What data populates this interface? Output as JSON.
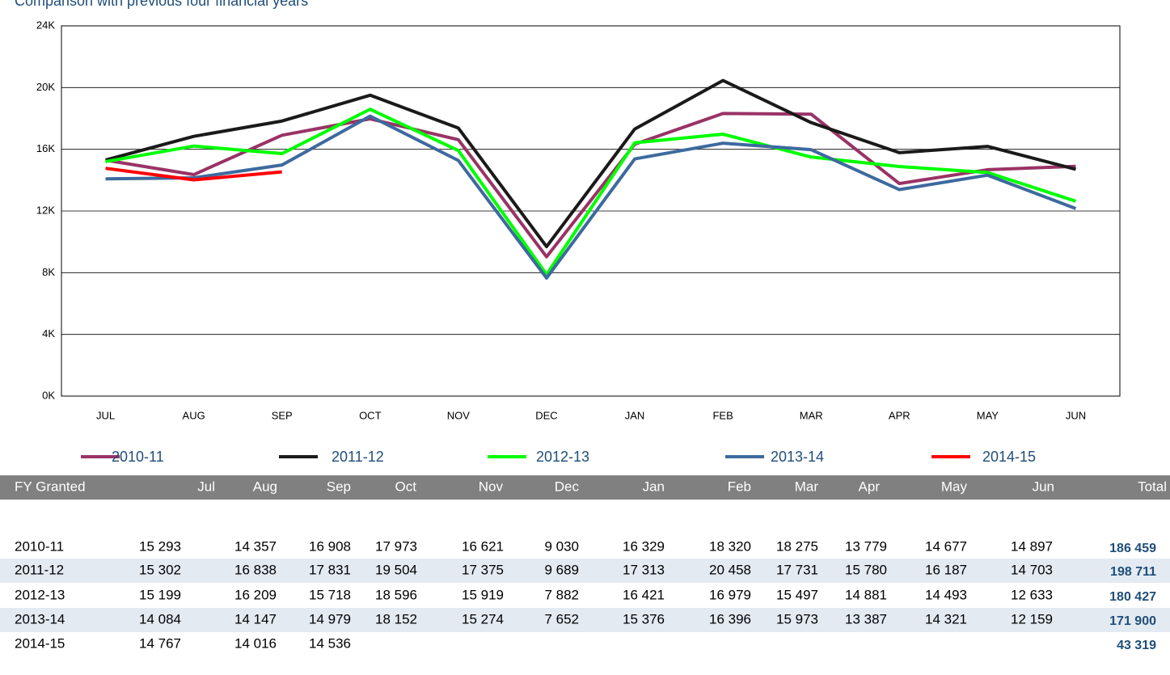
{
  "chart_data": {
    "type": "line",
    "title": "Comparison with previous four financial years",
    "categories": [
      "JUL",
      "AUG",
      "SEP",
      "OCT",
      "NOV",
      "DEC",
      "JAN",
      "FEB",
      "MAR",
      "APR",
      "MAY",
      "JUN"
    ],
    "series": [
      {
        "name": "2010-11",
        "color": "#993366",
        "values": [
          15293,
          14357,
          16908,
          17973,
          16621,
          9030,
          16329,
          18320,
          18275,
          13779,
          14677,
          14897
        ]
      },
      {
        "name": "2011-12",
        "color": "#1a1a1a",
        "values": [
          15302,
          16838,
          17831,
          19504,
          17375,
          9689,
          17313,
          20458,
          17731,
          15780,
          16187,
          14703
        ]
      },
      {
        "name": "2012-13",
        "color": "#00ff00",
        "values": [
          15199,
          16209,
          15718,
          18596,
          15919,
          7882,
          16421,
          16979,
          15497,
          14881,
          14493,
          12633
        ]
      },
      {
        "name": "2013-14",
        "color": "#3d6a9e",
        "values": [
          14084,
          14147,
          14979,
          18152,
          15274,
          7652,
          15376,
          16396,
          15973,
          13387,
          14321,
          12159
        ]
      },
      {
        "name": "2014-15",
        "color": "#ff0000",
        "values": [
          14767,
          14016,
          14536,
          null,
          null,
          null,
          null,
          null,
          null,
          null,
          null,
          null
        ]
      }
    ],
    "ylim": [
      0,
      24000
    ],
    "yticks": [
      {
        "value": 0,
        "label": "0K"
      },
      {
        "value": 4000,
        "label": "4K"
      },
      {
        "value": 8000,
        "label": "8K"
      },
      {
        "value": 12000,
        "label": "12K"
      },
      {
        "value": 16000,
        "label": "16K"
      },
      {
        "value": 20000,
        "label": "20K"
      },
      {
        "value": 24000,
        "label": "24K"
      }
    ],
    "grid": true,
    "legend": "bottom"
  },
  "table": {
    "header": [
      "FY Granted",
      "Jul",
      "Aug",
      "Sep",
      "Oct",
      "Nov",
      "Dec",
      "Jan",
      "Feb",
      "Mar",
      "Apr",
      "May",
      "Jun",
      "Total"
    ],
    "rows": [
      {
        "fy": "2010-11",
        "months": [
          "15 293",
          "14 357",
          "16 908",
          "17 973",
          "16 621",
          "9 030",
          "16 329",
          "18 320",
          "18 275",
          "13 779",
          "14 677",
          "14 897"
        ],
        "total": "186 459"
      },
      {
        "fy": "2011-12",
        "months": [
          "15 302",
          "16 838",
          "17 831",
          "19 504",
          "17 375",
          "9 689",
          "17 313",
          "20 458",
          "17 731",
          "15 780",
          "16 187",
          "14 703"
        ],
        "total": "198 711"
      },
      {
        "fy": "2012-13",
        "months": [
          "15 199",
          "16 209",
          "15 718",
          "18 596",
          "15 919",
          "7 882",
          "16 421",
          "16 979",
          "15 497",
          "14 881",
          "14 493",
          "12 633"
        ],
        "total": "180 427"
      },
      {
        "fy": "2013-14",
        "months": [
          "14 084",
          "14 147",
          "14 979",
          "18 152",
          "15 274",
          "7 652",
          "15 376",
          "16 396",
          "15 973",
          "13 387",
          "14 321",
          "12 159"
        ],
        "total": "171 900"
      },
      {
        "fy": "2014-15",
        "months": [
          "14 767",
          "14 016",
          "14 536"
        ],
        "total": "43 319"
      }
    ]
  }
}
